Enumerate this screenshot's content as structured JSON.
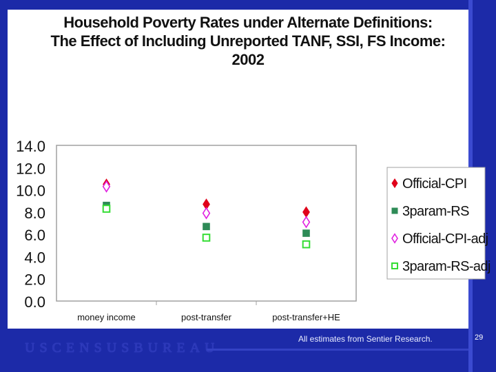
{
  "title_lines": [
    "Household Poverty Rates under Alternate Definitions:",
    "The Effect of Including Unreported TANF, SSI, FS Income:",
    "2002"
  ],
  "footer": {
    "brand": "USCENSUSBUREAU",
    "note": "All estimates from Sentier Research.",
    "page": "29"
  },
  "colors": {
    "background": "#1c2aa8",
    "official_cpi": "#e0001a",
    "threeparam_rs": "#2e8b57",
    "official_cpi_adj": "#e020e0",
    "threeparam_rs_adj": "#33dd33"
  },
  "chart_data": {
    "type": "scatter",
    "title": "Household Poverty Rates under Alternate Definitions: The Effect of Including Unreported TANF, SSI, FS Income: 2002",
    "categories": [
      "money income",
      "post-transfer",
      "post-transfer+HE"
    ],
    "yticks": [
      "0.0",
      "2.0",
      "4.0",
      "6.0",
      "8.0",
      "10.0",
      "12.0",
      "14.0"
    ],
    "ylim": [
      0,
      14
    ],
    "grid": false,
    "legend_position": "right",
    "series": [
      {
        "name": "Official-CPI",
        "marker": "diamond-filled",
        "color": "#e0001a",
        "values": [
          10.5,
          8.7,
          8.0
        ]
      },
      {
        "name": "3param-RS",
        "marker": "square-filled",
        "color": "#2e8b57",
        "values": [
          8.6,
          6.7,
          6.1
        ]
      },
      {
        "name": "Official-CPI-adj",
        "marker": "diamond-open",
        "color": "#e020e0",
        "values": [
          10.3,
          7.9,
          7.1
        ]
      },
      {
        "name": "3param-RS-adj",
        "marker": "square-open",
        "color": "#33dd33",
        "values": [
          8.3,
          5.7,
          5.1
        ]
      }
    ]
  }
}
